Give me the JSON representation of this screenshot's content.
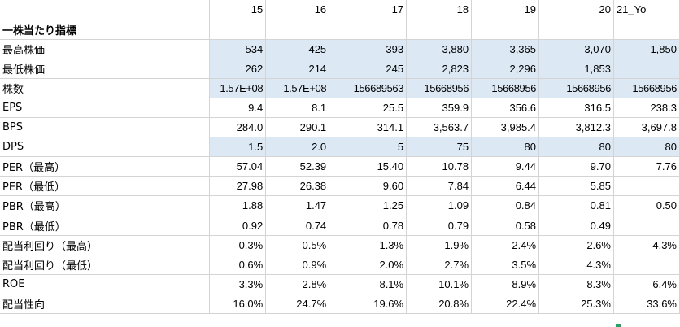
{
  "columns": [
    "15",
    "16",
    "17",
    "18",
    "19",
    "20",
    "21_Yo"
  ],
  "highlight_color": "#dce9f5",
  "rows": [
    {
      "label": "一株当たり指標",
      "bold": true,
      "values": [
        "",
        "",
        "",
        "",
        "",
        "",
        ""
      ],
      "highlight": [
        false,
        false,
        false,
        false,
        false,
        false,
        false
      ]
    },
    {
      "label": "最高株価",
      "values": [
        "534",
        "425",
        "393",
        "3,880",
        "3,365",
        "3,070",
        "1,850"
      ],
      "highlight": [
        true,
        true,
        true,
        true,
        true,
        true,
        true
      ]
    },
    {
      "label": "最低株価",
      "values": [
        "262",
        "214",
        "245",
        "2,823",
        "2,296",
        "1,853",
        ""
      ],
      "highlight": [
        true,
        true,
        true,
        true,
        true,
        true,
        true
      ]
    },
    {
      "label": "株数",
      "values": [
        "1.57E+08",
        "1.57E+08",
        "156689563",
        "15668956",
        "15668956",
        "15668956",
        "15668956"
      ],
      "highlight": [
        true,
        true,
        true,
        true,
        true,
        true,
        true
      ]
    },
    {
      "label": "EPS",
      "values": [
        "9.4",
        "8.1",
        "25.5",
        "359.9",
        "356.6",
        "316.5",
        "238.3"
      ],
      "highlight": [
        false,
        false,
        false,
        false,
        false,
        false,
        false
      ]
    },
    {
      "label": "BPS",
      "values": [
        "284.0",
        "290.1",
        "314.1",
        "3,563.7",
        "3,985.4",
        "3,812.3",
        "3,697.8"
      ],
      "highlight": [
        false,
        false,
        false,
        false,
        false,
        false,
        false
      ]
    },
    {
      "label": "DPS",
      "values": [
        "1.5",
        "2.0",
        "5",
        "75",
        "80",
        "80",
        "80"
      ],
      "highlight": [
        true,
        true,
        true,
        true,
        true,
        true,
        true
      ]
    },
    {
      "label": "PER（最高）",
      "values": [
        "57.04",
        "52.39",
        "15.40",
        "10.78",
        "9.44",
        "9.70",
        "7.76"
      ],
      "highlight": [
        false,
        false,
        false,
        false,
        false,
        false,
        false
      ]
    },
    {
      "label": "PER（最低）",
      "values": [
        "27.98",
        "26.38",
        "9.60",
        "7.84",
        "6.44",
        "5.85",
        ""
      ],
      "highlight": [
        false,
        false,
        false,
        false,
        false,
        false,
        false
      ]
    },
    {
      "label": "PBR（最高）",
      "values": [
        "1.88",
        "1.47",
        "1.25",
        "1.09",
        "0.84",
        "0.81",
        "0.50"
      ],
      "highlight": [
        false,
        false,
        false,
        false,
        false,
        false,
        false
      ]
    },
    {
      "label": "PBR（最低）",
      "values": [
        "0.92",
        "0.74",
        "0.78",
        "0.79",
        "0.58",
        "0.49",
        ""
      ],
      "highlight": [
        false,
        false,
        false,
        false,
        false,
        false,
        false
      ]
    },
    {
      "label": "配当利回り（最高）",
      "values": [
        "0.3%",
        "0.5%",
        "1.3%",
        "1.9%",
        "2.4%",
        "2.6%",
        "4.3%"
      ],
      "highlight": [
        false,
        false,
        false,
        false,
        false,
        false,
        false
      ]
    },
    {
      "label": "配当利回り（最低）",
      "values": [
        "0.6%",
        "0.9%",
        "2.0%",
        "2.7%",
        "3.5%",
        "4.3%",
        ""
      ],
      "highlight": [
        false,
        false,
        false,
        false,
        false,
        false,
        false
      ]
    },
    {
      "label": "ROE",
      "values": [
        "3.3%",
        "2.8%",
        "8.1%",
        "10.1%",
        "8.9%",
        "8.3%",
        "6.4%"
      ],
      "highlight": [
        false,
        false,
        false,
        false,
        false,
        false,
        false
      ]
    },
    {
      "label": "配当性向",
      "values": [
        "16.0%",
        "24.7%",
        "19.6%",
        "20.8%",
        "22.4%",
        "25.3%",
        "33.6%"
      ],
      "highlight": [
        false,
        false,
        false,
        false,
        false,
        false,
        false
      ]
    }
  ]
}
